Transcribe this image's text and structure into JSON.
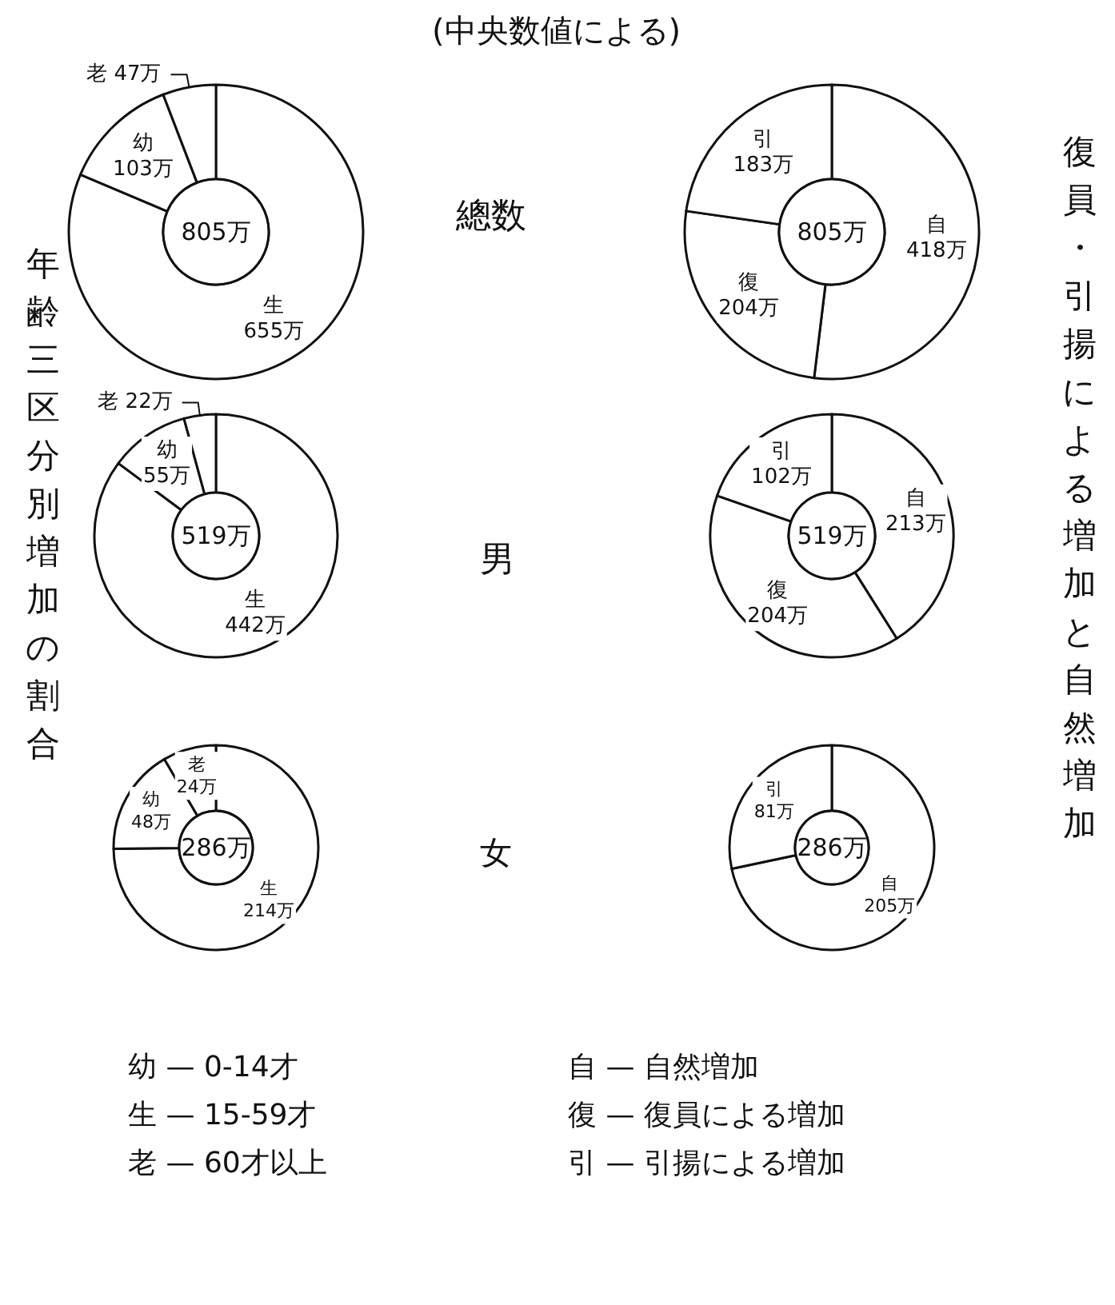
{
  "chart_data": [
    {
      "type": "donut",
      "categories": [
        "生",
        "幼",
        "老"
      ],
      "values": [
        655,
        103,
        47
      ],
      "value_labels": [
        "655万",
        "103万",
        "47万"
      ],
      "colors": [
        "#ffffff",
        "#ffffff",
        "#ffffff"
      ],
      "annotations": [
        "805万"
      ]
    },
    {
      "type": "donut",
      "categories": [
        "自",
        "復",
        "引"
      ],
      "values": [
        418,
        204,
        183
      ],
      "value_labels": [
        "418万",
        "204万",
        "183万"
      ],
      "colors": [
        "#ffffff",
        "#ffffff",
        "#ffffff"
      ],
      "annotations": [
        "805万"
      ]
    },
    {
      "type": "donut",
      "categories": [
        "生",
        "幼",
        "老"
      ],
      "values": [
        442,
        55,
        22
      ],
      "value_labels": [
        "442万",
        "55万",
        "22万"
      ],
      "colors": [
        "#ffffff",
        "#ffffff",
        "#ffffff"
      ],
      "annotations": [
        "519万"
      ]
    },
    {
      "type": "donut",
      "categories": [
        "自",
        "復",
        "引"
      ],
      "values": [
        213,
        204,
        102
      ],
      "value_labels": [
        "213万",
        "204万",
        "102万"
      ],
      "colors": [
        "#ffffff",
        "#ffffff",
        "#ffffff"
      ],
      "annotations": [
        "519万"
      ]
    },
    {
      "type": "donut",
      "categories": [
        "生",
        "幼",
        "老"
      ],
      "values": [
        214,
        48,
        24
      ],
      "value_labels": [
        "214万",
        "48万",
        "24万"
      ],
      "colors": [
        "#ffffff",
        "#ffffff",
        "#ffffff"
      ],
      "annotations": [
        "286万"
      ]
    },
    {
      "type": "donut",
      "categories": [
        "自",
        "引"
      ],
      "values": [
        205,
        81
      ],
      "value_labels": [
        "205万",
        "81万"
      ],
      "colors": [
        "#ffffff",
        "#ffffff"
      ],
      "annotations": [
        "286万"
      ]
    },
    {
      "type": "other",
      "title": "(中央数値による)",
      "annotations": [
        "年齢三区分別増加の割合",
        "復員・引揚による増加と自然増加",
        "總数",
        "男",
        "女",
        "幼 — 0-14才",
        "生 — 15-59才",
        "老 — 60才以上",
        "自 — 自然増加",
        "復 — 復員による増加",
        "引 — 引揚による増加"
      ]
    }
  ]
}
